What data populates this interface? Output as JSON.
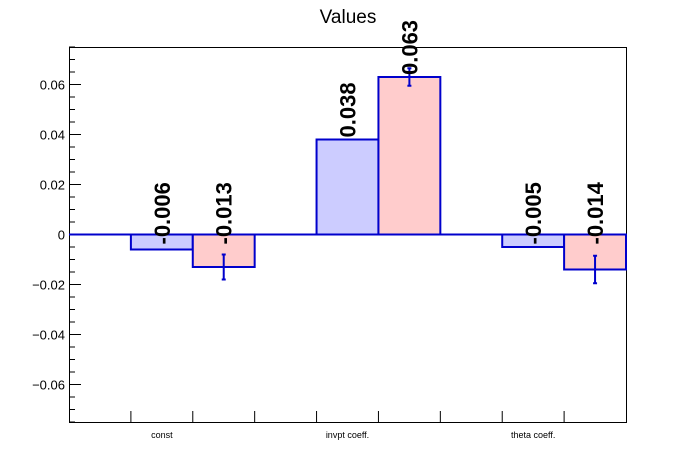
{
  "chart_data": {
    "type": "bar",
    "title": "Values",
    "categories": [
      "const",
      "invpt coeff.",
      "theta coeff."
    ],
    "series": [
      {
        "values": [
          -0.006,
          0.038,
          -0.005
        ],
        "errors": [
          0.0,
          0.0,
          0.0
        ],
        "color": "#ccccff"
      },
      {
        "values": [
          -0.013,
          0.063,
          -0.014
        ],
        "errors": [
          0.005,
          0.0035,
          0.0055
        ],
        "color": "#ffcccc"
      }
    ],
    "data_labels": [
      [
        "-0.006",
        "0.038",
        "-0.005"
      ],
      [
        "-0.013",
        "0.063",
        "-0.014"
      ]
    ],
    "yticks": [
      "0.06",
      "0.04",
      "0.02",
      "0",
      "−0.02",
      "−0.04",
      "−0.06"
    ],
    "ytick_values": [
      0.06,
      0.04,
      0.02,
      0,
      -0.02,
      -0.04,
      -0.06
    ],
    "ylim": [
      -0.075,
      0.075
    ],
    "xlabel": "",
    "ylabel": "",
    "grid": false,
    "edge_color": "#0000cc"
  }
}
